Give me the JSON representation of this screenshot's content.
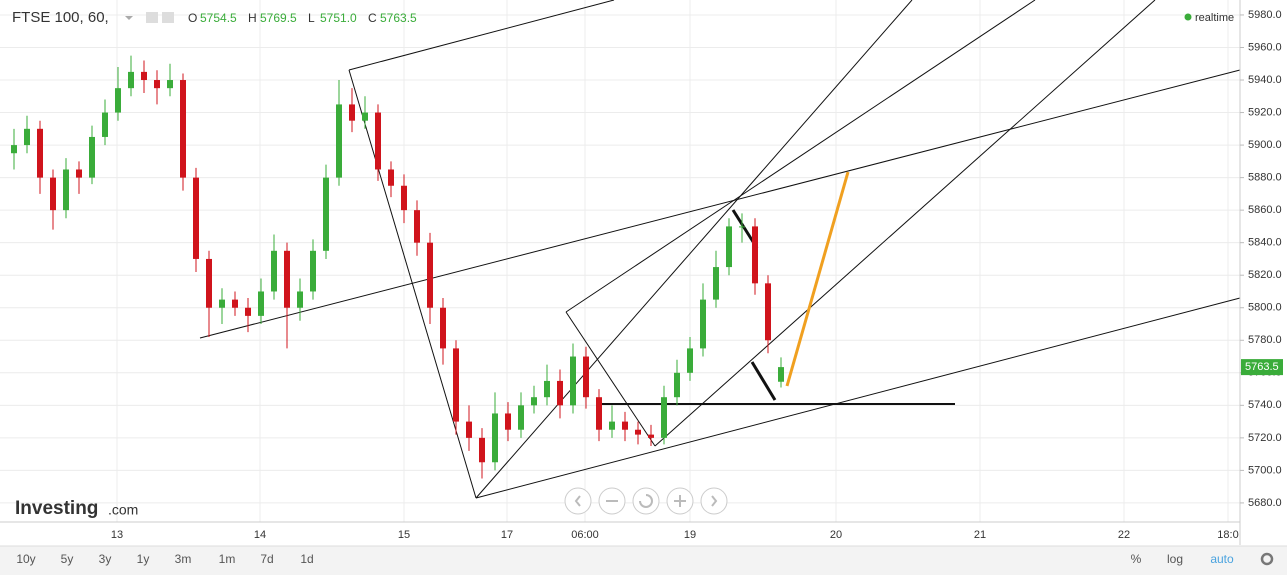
{
  "chart_data": {
    "type": "candlestick",
    "title": "FTSE 100, 60,",
    "ohlc_header": [
      {
        "key": "O",
        "text": "5754.5"
      },
      {
        "key": "H",
        "text": "5769.5"
      },
      {
        "key": "L",
        "text": "5751.0"
      },
      {
        "key": "C",
        "text": "5763.5"
      }
    ],
    "status": "realtime",
    "logo": {
      "name": "Investing",
      "suffix": ".com"
    },
    "up_color": "#3aac3a",
    "down_color": "#d0141c",
    "open": [
      5895,
      5900,
      5910,
      5880,
      5860,
      5885,
      5880,
      5905,
      5920,
      5935,
      5945,
      5940,
      5935,
      5940,
      5880,
      5830,
      5800,
      5805,
      5800,
      5795,
      5810,
      5835,
      5800,
      5810,
      5835,
      5880,
      5925,
      5915,
      5920,
      5885,
      5875,
      5860,
      5840,
      5800,
      5775,
      5730,
      5720,
      5705,
      5735,
      5725,
      5740,
      5745,
      5755,
      5740,
      5770,
      5745,
      5725,
      5730,
      5725,
      5722,
      5720,
      5745,
      5760,
      5775,
      5805,
      5825,
      5850,
      5850,
      5815,
      5754.5
    ],
    "high": [
      5910,
      5918,
      5915,
      5885,
      5892,
      5890,
      5912,
      5928,
      5948,
      5955,
      5952,
      5946,
      5950,
      5944,
      5886,
      5835,
      5812,
      5810,
      5806,
      5818,
      5845,
      5840,
      5818,
      5842,
      5888,
      5940,
      5935,
      5930,
      5925,
      5890,
      5882,
      5866,
      5846,
      5806,
      5780,
      5740,
      5726,
      5748,
      5742,
      5748,
      5752,
      5765,
      5762,
      5778,
      5776,
      5750,
      5740,
      5736,
      5730,
      5728,
      5752,
      5768,
      5782,
      5815,
      5835,
      5855,
      5858,
      5855,
      5820,
      5769.5
    ],
    "low": [
      5885,
      5895,
      5870,
      5848,
      5855,
      5870,
      5876,
      5900,
      5915,
      5930,
      5932,
      5925,
      5930,
      5872,
      5822,
      5782,
      5790,
      5795,
      5785,
      5790,
      5805,
      5775,
      5792,
      5805,
      5830,
      5875,
      5908,
      5910,
      5878,
      5868,
      5852,
      5832,
      5790,
      5765,
      5722,
      5712,
      5695,
      5700,
      5718,
      5720,
      5735,
      5740,
      5732,
      5735,
      5738,
      5718,
      5720,
      5718,
      5716,
      5715,
      5716,
      5740,
      5755,
      5770,
      5800,
      5820,
      5840,
      5808,
      5772,
      5751.0
    ],
    "close": [
      5900,
      5910,
      5880,
      5860,
      5885,
      5880,
      5905,
      5920,
      5935,
      5945,
      5940,
      5935,
      5940,
      5880,
      5830,
      5800,
      5805,
      5800,
      5795,
      5810,
      5835,
      5800,
      5810,
      5835,
      5880,
      5925,
      5915,
      5920,
      5885,
      5875,
      5860,
      5840,
      5800,
      5775,
      5730,
      5720,
      5705,
      5735,
      5725,
      5740,
      5745,
      5755,
      5740,
      5770,
      5745,
      5725,
      5730,
      5725,
      5722,
      5720,
      5745,
      5760,
      5775,
      5805,
      5825,
      5850,
      5850,
      5815,
      5780,
      5763.5
    ],
    "last_price": {
      "value": 5763.5,
      "label": "5763.5"
    },
    "ylim": [
      5669.5,
      5989.2
    ],
    "yticks": [
      {
        "value": 5680,
        "label": "5680.0"
      },
      {
        "value": 5700,
        "label": "5700.0"
      },
      {
        "value": 5720,
        "label": "5720.0"
      },
      {
        "value": 5740,
        "label": "5740.0"
      },
      {
        "value": 5760,
        "label": "5760.0"
      },
      {
        "value": 5780,
        "label": "5780.0"
      },
      {
        "value": 5800,
        "label": "5800.0"
      },
      {
        "value": 5820,
        "label": "5820.0"
      },
      {
        "value": 5840,
        "label": "5840.0"
      },
      {
        "value": 5860,
        "label": "5860.0"
      },
      {
        "value": 5880,
        "label": "5880.0"
      },
      {
        "value": 5900,
        "label": "5900.0"
      },
      {
        "value": 5920,
        "label": "5920.0"
      },
      {
        "value": 5940,
        "label": "5940.0"
      },
      {
        "value": 5960,
        "label": "5960.0"
      },
      {
        "value": 5980,
        "label": "5980.0"
      }
    ],
    "x_labels": [
      "13",
      "14",
      "15",
      "17",
      "06:00",
      "19",
      "20",
      "21",
      "22",
      "18:0"
    ],
    "grid": true
  },
  "toolbar": {
    "ranges": [
      "10y",
      "5y",
      "3y",
      "1y",
      "3m",
      "1m",
      "7d",
      "1d"
    ],
    "options": [
      "%",
      "log",
      "auto"
    ]
  }
}
